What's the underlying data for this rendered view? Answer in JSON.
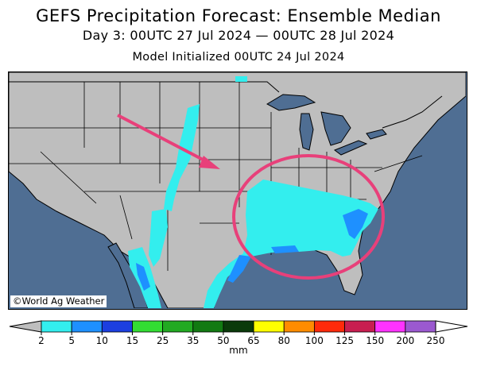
{
  "header": {
    "title": "GEFS Precipitation Forecast: Ensemble Median",
    "period": "Day 3: 00UTC 27 Jul 2024 — 00UTC 28 Jul 2024",
    "initialized": "Model Initialized 00UTC 24 Jul 2024"
  },
  "map": {
    "credit": "©World Ag Weather",
    "colors": {
      "water": "#4f6e93",
      "land": "#bebebe",
      "highlight": "#e8407a"
    },
    "annotations": [
      {
        "type": "arrow",
        "meaning": "points toward highlighted region"
      },
      {
        "type": "ellipse",
        "meaning": "highlights southeastern US rainfall"
      }
    ]
  },
  "legend": {
    "units": "mm",
    "ticks": [
      "2",
      "5",
      "10",
      "15",
      "25",
      "35",
      "50",
      "65",
      "80",
      "100",
      "125",
      "150",
      "200",
      "250"
    ],
    "low_color": "#bebebe",
    "high_color": "#ffffff",
    "colors": [
      "#33eeee",
      "#1e90ff",
      "#1c3fe0",
      "#33dd33",
      "#22aa22",
      "#127a12",
      "#0a3a0a",
      "#ffff00",
      "#ff8c00",
      "#ff2a0a",
      "#c81e50",
      "#ff33ff",
      "#9b59d0"
    ]
  }
}
